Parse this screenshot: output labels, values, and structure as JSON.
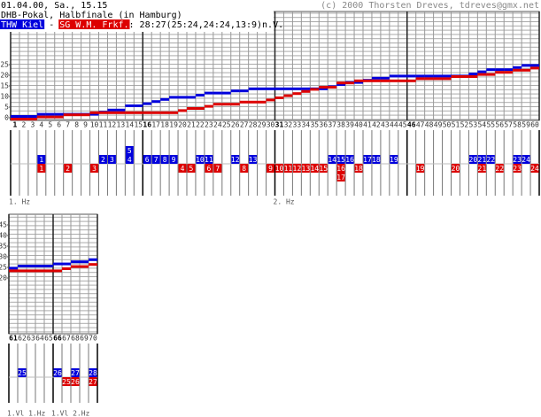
{
  "header": {
    "date": "01.04.00, Sa., 15.15",
    "event": "DHB-Pokal, Halbfinale (in Hamburg)",
    "separator": " - ",
    "result": ": 28:27(25:24,24:24,13:9)n.V.",
    "copyright": "(c) 2000 Thorsten Dreves, tdreves@gmx.net"
  },
  "chart_data": [
    {
      "type": "step",
      "categories": [
        1,
        2,
        3,
        4,
        5,
        6,
        7,
        8,
        9,
        10,
        11,
        12,
        13,
        14,
        15,
        16,
        17,
        18,
        19,
        20,
        21,
        22,
        23,
        24,
        25,
        26,
        27,
        28,
        29,
        30,
        31,
        32,
        33,
        34,
        35,
        36,
        37,
        38,
        39,
        40,
        41,
        42,
        43,
        44,
        45,
        46,
        47,
        48,
        49,
        50,
        51,
        52,
        53,
        54,
        55,
        56,
        57,
        58,
        59,
        60
      ],
      "ylim": [
        0,
        50
      ],
      "yticks": [
        0,
        5,
        10,
        15,
        20,
        25
      ],
      "periods": [
        {
          "minute": 1,
          "label": "1. Hz"
        },
        {
          "minute": 31,
          "label": "2. Hz"
        }
      ],
      "series": [
        {
          "name": "THW Kiel",
          "color": "#0000dd",
          "values": [
            0,
            0,
            0,
            1,
            1,
            1,
            1,
            1,
            1,
            1,
            2,
            3,
            3,
            5,
            5,
            6,
            7,
            8,
            9,
            9,
            9,
            10,
            11,
            11,
            11,
            12,
            12,
            13,
            13,
            13,
            13,
            13,
            13,
            13,
            13,
            13,
            14,
            15,
            16,
            16,
            17,
            18,
            18,
            19,
            19,
            19,
            19,
            19,
            19,
            19,
            19,
            19,
            20,
            21,
            22,
            22,
            22,
            23,
            24,
            24
          ],
          "goals": [
            {
              "minute": 4,
              "number": 1
            },
            {
              "minute": 11,
              "number": 2
            },
            {
              "minute": 12,
              "number": 3
            },
            {
              "minute": 14,
              "number": 4
            },
            {
              "minute": 14,
              "number": 5
            },
            {
              "minute": 16,
              "number": 6
            },
            {
              "minute": 17,
              "number": 7
            },
            {
              "minute": 18,
              "number": 8
            },
            {
              "minute": 19,
              "number": 9
            },
            {
              "minute": 22,
              "number": 10
            },
            {
              "minute": 23,
              "number": 11
            },
            {
              "minute": 26,
              "number": 12
            },
            {
              "minute": 28,
              "number": 13
            },
            {
              "minute": 37,
              "number": 14
            },
            {
              "minute": 38,
              "number": 15
            },
            {
              "minute": 39,
              "number": 16
            },
            {
              "minute": 41,
              "number": 17
            },
            {
              "minute": 42,
              "number": 18
            },
            {
              "minute": 44,
              "number": 19
            },
            {
              "minute": 53,
              "number": 20
            },
            {
              "minute": 54,
              "number": 21
            },
            {
              "minute": 55,
              "number": 22
            },
            {
              "minute": 58,
              "number": 23
            },
            {
              "minute": 59,
              "number": 24
            }
          ]
        },
        {
          "name": "SG W.M. Frkf.",
          "color": "#dd0000",
          "values": [
            0,
            0,
            0,
            1,
            1,
            1,
            2,
            2,
            2,
            3,
            3,
            3,
            3,
            3,
            3,
            3,
            3,
            3,
            3,
            4,
            5,
            5,
            6,
            7,
            7,
            7,
            8,
            8,
            8,
            9,
            10,
            11,
            12,
            13,
            14,
            15,
            15,
            17,
            17,
            18,
            18,
            18,
            18,
            18,
            18,
            18,
            19,
            19,
            19,
            19,
            20,
            20,
            20,
            21,
            21,
            22,
            22,
            23,
            23,
            24
          ],
          "goals": [
            {
              "minute": 4,
              "number": 1
            },
            {
              "minute": 7,
              "number": 2
            },
            {
              "minute": 10,
              "number": 3
            },
            {
              "minute": 20,
              "number": 4
            },
            {
              "minute": 21,
              "number": 5
            },
            {
              "minute": 23,
              "number": 6
            },
            {
              "minute": 24,
              "number": 7
            },
            {
              "minute": 27,
              "number": 8
            },
            {
              "minute": 30,
              "number": 9
            },
            {
              "minute": 31,
              "number": 10
            },
            {
              "minute": 32,
              "number": 11
            },
            {
              "minute": 33,
              "number": 12
            },
            {
              "minute": 34,
              "number": 13
            },
            {
              "minute": 35,
              "number": 14
            },
            {
              "minute": 36,
              "number": 15
            },
            {
              "minute": 38,
              "number": 16
            },
            {
              "minute": 38,
              "number": 17
            },
            {
              "minute": 40,
              "number": 18
            },
            {
              "minute": 47,
              "number": 19
            },
            {
              "minute": 51,
              "number": 20
            },
            {
              "minute": 54,
              "number": 21
            },
            {
              "minute": 56,
              "number": 22
            },
            {
              "minute": 58,
              "number": 23
            },
            {
              "minute": 60,
              "number": 24
            }
          ]
        }
      ]
    },
    {
      "type": "step",
      "categories": [
        61,
        62,
        63,
        64,
        65,
        66,
        67,
        68,
        69,
        70
      ],
      "ylim": [
        -5,
        50
      ],
      "yticks": [
        20,
        25,
        30,
        35,
        40,
        45
      ],
      "periods": [
        {
          "minute": 61,
          "label": "1.Vl 1.Hz"
        },
        {
          "minute": 66,
          "label": "1.Vl 2.Hz"
        }
      ],
      "series": [
        {
          "color": "#0000dd",
          "values": [
            24,
            25,
            25,
            25,
            25,
            26,
            26,
            27,
            27,
            28
          ],
          "goals": [
            {
              "minute": 62,
              "number": 25
            },
            {
              "minute": 66,
              "number": 26
            },
            {
              "minute": 68,
              "number": 27
            },
            {
              "minute": 70,
              "number": 28
            }
          ]
        },
        {
          "color": "#dd0000",
          "values": [
            24,
            24,
            24,
            24,
            24,
            24,
            25,
            26,
            26,
            27
          ],
          "goals": [
            {
              "minute": 67,
              "number": 25
            },
            {
              "minute": 68,
              "number": 26
            },
            {
              "minute": 70,
              "number": 27
            }
          ]
        }
      ]
    }
  ]
}
